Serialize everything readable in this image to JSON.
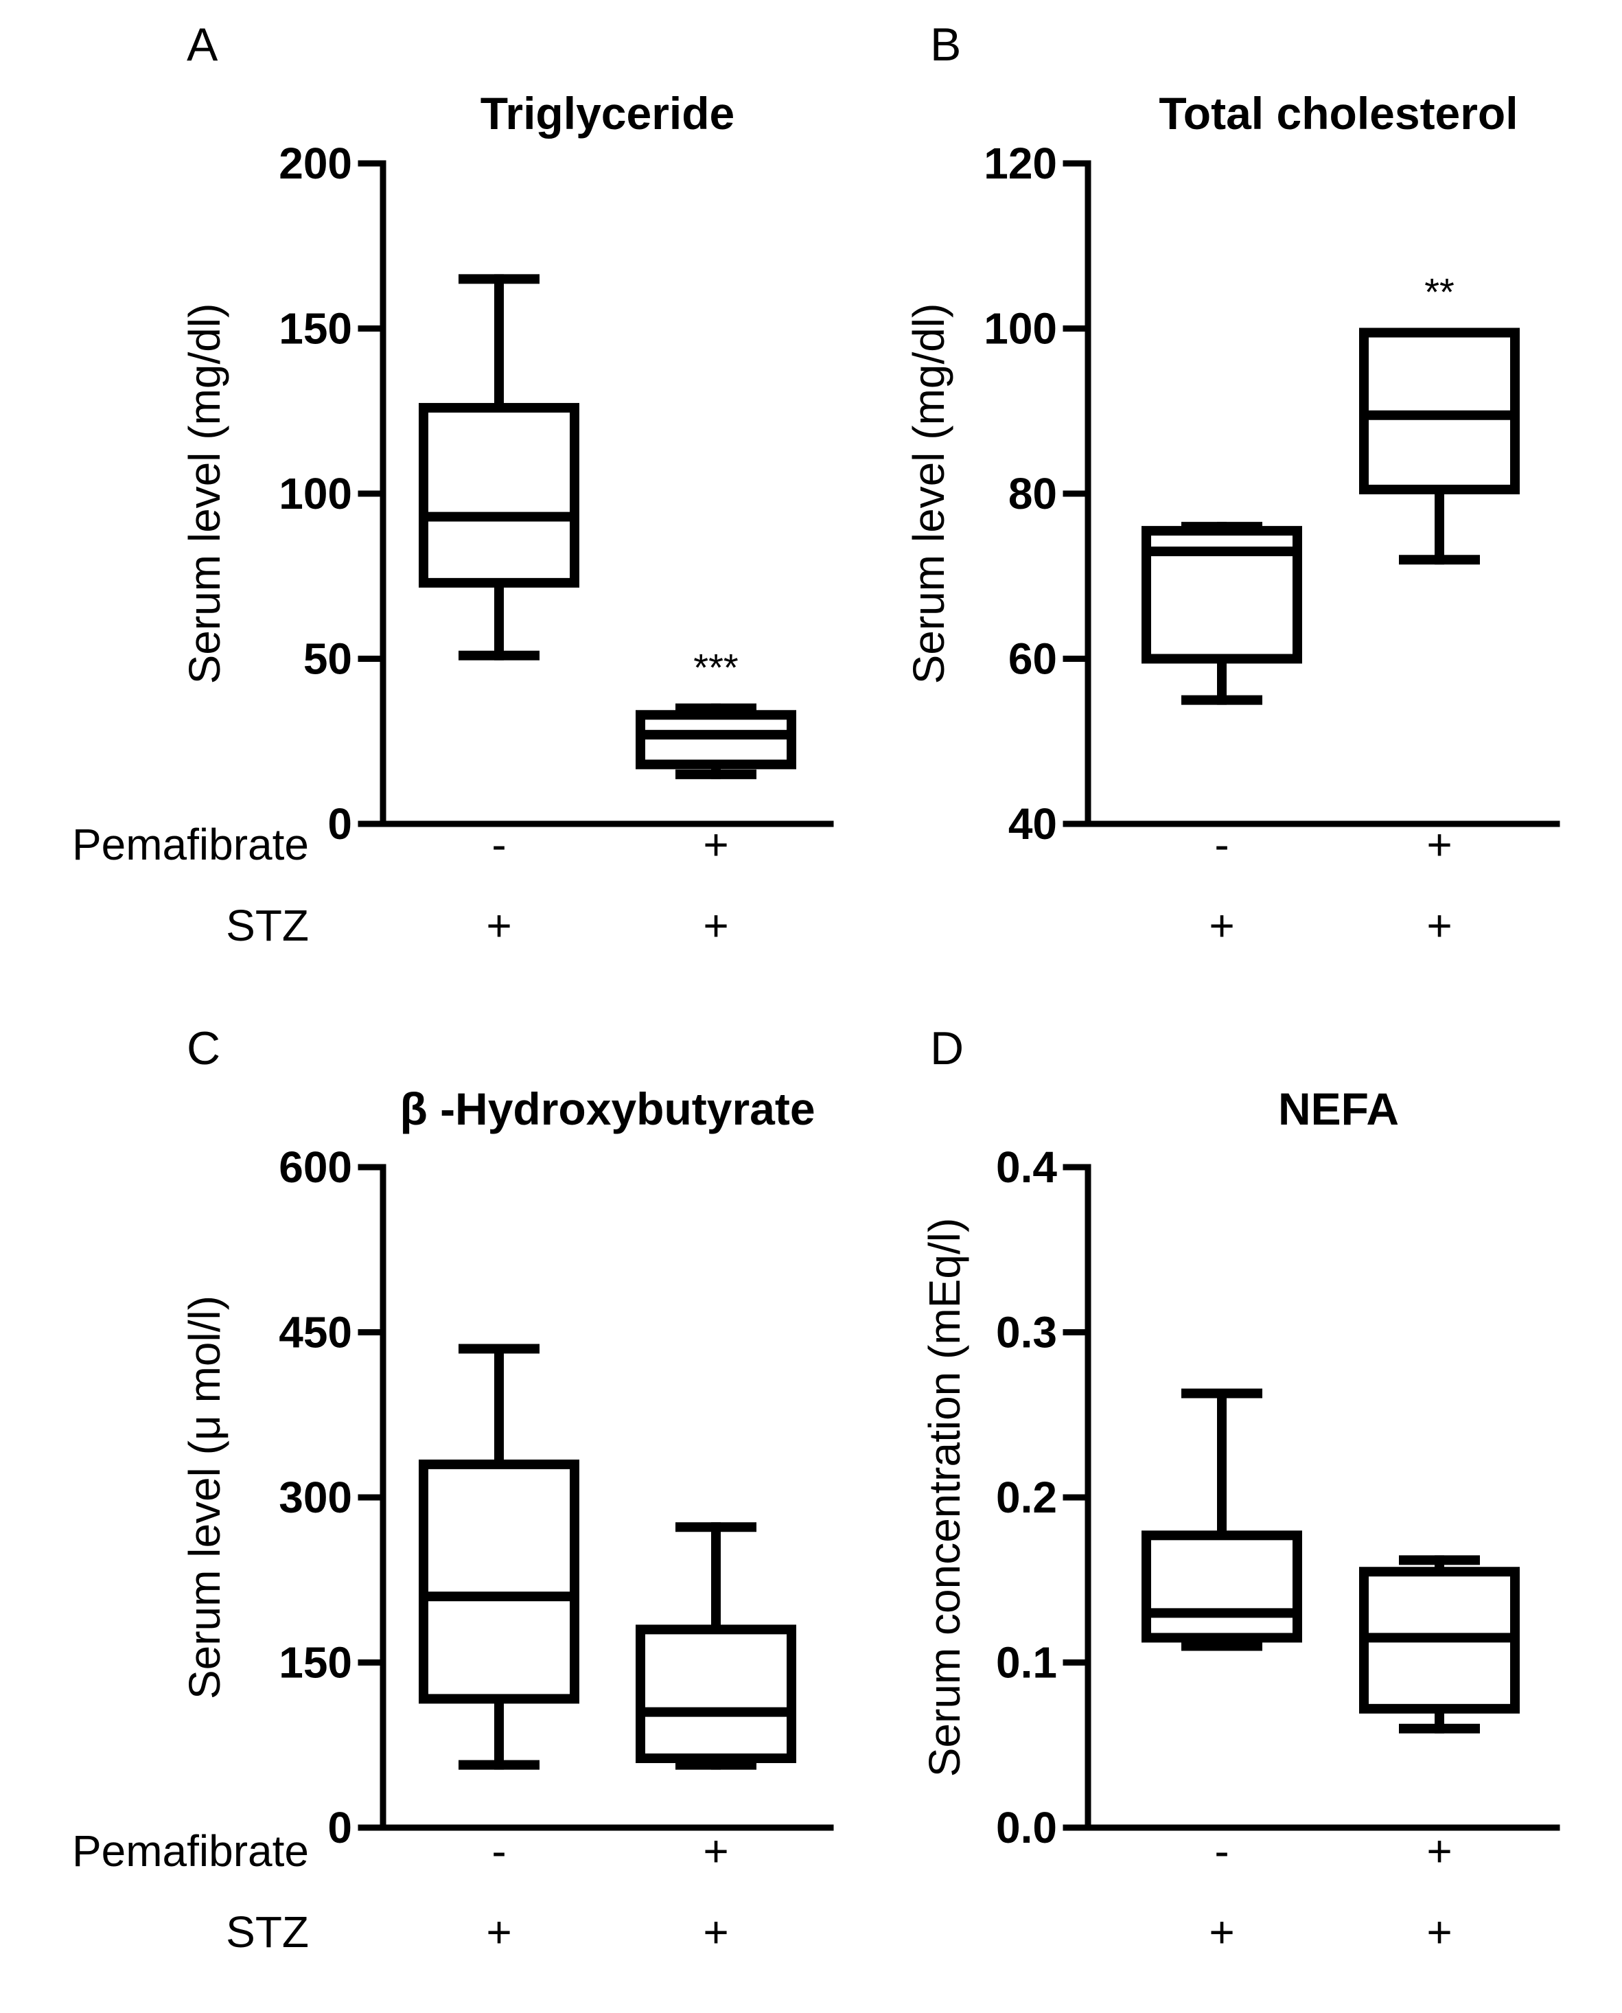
{
  "figure": {
    "treatment_rows": [
      "Pemafibrate",
      "STZ"
    ]
  },
  "chart_data": [
    {
      "panel": "A",
      "type": "box",
      "title": "Triglyceride",
      "ylabel": "Serum level (mg/dl)",
      "ylim": [
        0,
        200
      ],
      "yticks": [
        0,
        50,
        100,
        150,
        200
      ],
      "tick_labels": [
        "0",
        "50",
        "100",
        "150",
        "200"
      ],
      "groups": [
        {
          "pemafibrate": "-",
          "stz": "+",
          "min": 51,
          "q1": 73,
          "median": 93,
          "q3": 126,
          "max": 165,
          "sig": ""
        },
        {
          "pemafibrate": "+",
          "stz": "+",
          "min": 15,
          "q1": 18,
          "median": 27,
          "q3": 33,
          "max": 35,
          "sig": "***"
        }
      ]
    },
    {
      "panel": "B",
      "type": "box",
      "title": "Total cholesterol",
      "ylabel": "Serum level (mg/dl)",
      "ylim": [
        40,
        120
      ],
      "yticks": [
        40,
        60,
        80,
        100,
        120
      ],
      "tick_labels": [
        "40",
        "60",
        "80",
        "100",
        "120"
      ],
      "groups": [
        {
          "pemafibrate": "-",
          "stz": "+",
          "min": 55,
          "q1": 60,
          "median": 73,
          "q3": 75.5,
          "max": 76,
          "sig": ""
        },
        {
          "pemafibrate": "+",
          "stz": "+",
          "min": 72,
          "q1": 80.5,
          "median": 89.5,
          "q3": 99.5,
          "max": 99.5,
          "sig": "**"
        }
      ]
    },
    {
      "panel": "C",
      "type": "box",
      "title": "β -Hydroxybutyrate",
      "ylabel": "Serum level (μ mol/l)",
      "ylim": [
        0,
        600
      ],
      "yticks": [
        0,
        150,
        300,
        450,
        600
      ],
      "tick_labels": [
        "0",
        "150",
        "300",
        "450",
        "600"
      ],
      "groups": [
        {
          "pemafibrate": "-",
          "stz": "+",
          "min": 57,
          "q1": 117,
          "median": 210,
          "q3": 330,
          "max": 435,
          "sig": ""
        },
        {
          "pemafibrate": "+",
          "stz": "+",
          "min": 57,
          "q1": 63,
          "median": 105,
          "q3": 180,
          "max": 273,
          "sig": ""
        }
      ]
    },
    {
      "panel": "D",
      "type": "box",
      "title": "NEFA",
      "ylabel": "Serum concentration (mEq/l)",
      "ylim": [
        0,
        0.4
      ],
      "yticks": [
        0,
        0.1,
        0.2,
        0.3,
        0.4
      ],
      "tick_labels": [
        "0.0",
        "0.1",
        "0.2",
        "0.3",
        "0.4"
      ],
      "groups": [
        {
          "pemafibrate": "-",
          "stz": "+",
          "min": 0.11,
          "q1": 0.115,
          "median": 0.13,
          "q3": 0.177,
          "max": 0.263,
          "sig": ""
        },
        {
          "pemafibrate": "+",
          "stz": "+",
          "min": 0.06,
          "q1": 0.072,
          "median": 0.115,
          "q3": 0.155,
          "max": 0.162,
          "sig": ""
        }
      ]
    }
  ]
}
